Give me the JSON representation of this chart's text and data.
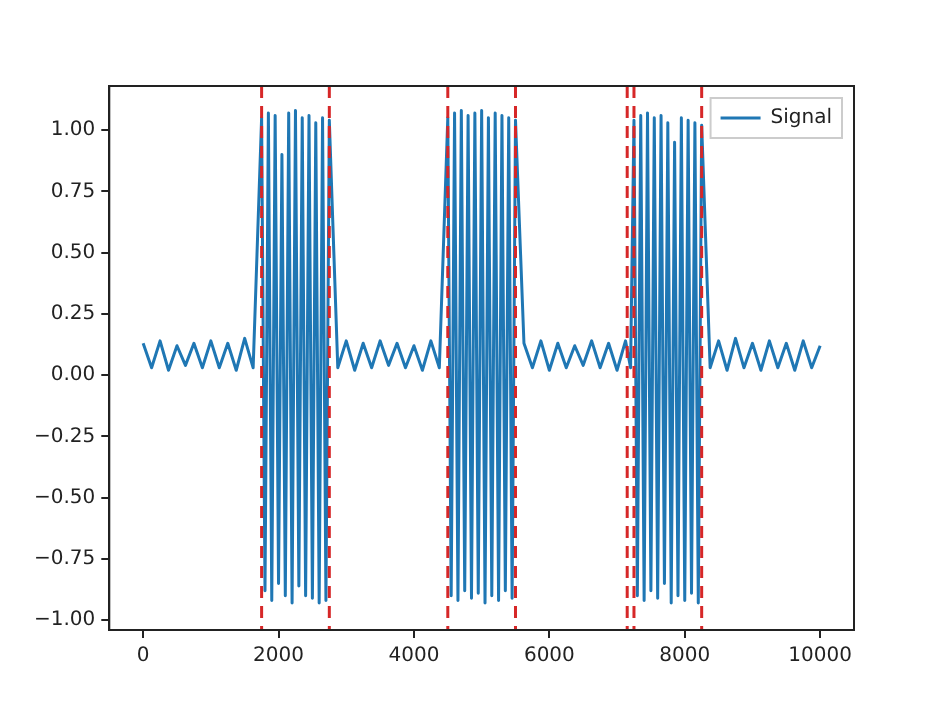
{
  "chart_data": {
    "type": "line",
    "x": [
      0,
      125,
      250,
      375,
      500,
      625,
      750,
      875,
      1000,
      1125,
      1250,
      1375,
      1500,
      1625,
      1750,
      1800,
      1850,
      1900,
      1950,
      2000,
      2050,
      2100,
      2150,
      2200,
      2250,
      2300,
      2350,
      2400,
      2450,
      2500,
      2550,
      2600,
      2650,
      2700,
      2750,
      2875,
      3000,
      3125,
      3250,
      3375,
      3500,
      3625,
      3750,
      3875,
      4000,
      4125,
      4250,
      4375,
      4500,
      4550,
      4600,
      4650,
      4700,
      4750,
      4800,
      4850,
      4900,
      4950,
      5000,
      5050,
      5100,
      5150,
      5200,
      5250,
      5300,
      5350,
      5400,
      5450,
      5500,
      5625,
      5750,
      5875,
      6000,
      6125,
      6250,
      6375,
      6500,
      6625,
      6750,
      6875,
      7000,
      7125,
      7200,
      7250,
      7300,
      7350,
      7400,
      7450,
      7500,
      7550,
      7600,
      7650,
      7700,
      7750,
      7800,
      7850,
      7900,
      7950,
      8000,
      8050,
      8100,
      8150,
      8200,
      8250,
      8375,
      8500,
      8625,
      8750,
      8875,
      9000,
      9125,
      9250,
      9375,
      9500,
      9625,
      9750,
      9875,
      10000
    ],
    "series": [
      {
        "name": "Signal",
        "color": "#1f77b4",
        "values": [
          0.13,
          0.03,
          0.14,
          0.02,
          0.12,
          0.04,
          0.13,
          0.03,
          0.14,
          0.03,
          0.13,
          0.02,
          0.15,
          0.03,
          1.05,
          -0.88,
          1.07,
          -0.92,
          1.06,
          -0.85,
          0.9,
          -0.9,
          1.07,
          -0.93,
          1.08,
          -0.86,
          1.05,
          -0.9,
          1.06,
          -0.91,
          1.03,
          -0.93,
          1.05,
          -0.92,
          1.04,
          0.03,
          0.14,
          0.02,
          0.13,
          0.03,
          0.14,
          0.04,
          0.13,
          0.03,
          0.12,
          0.02,
          0.14,
          0.03,
          1.05,
          -0.9,
          1.07,
          -0.92,
          1.08,
          -0.88,
          1.06,
          -0.91,
          1.07,
          -0.89,
          1.08,
          -0.93,
          1.05,
          -0.9,
          1.07,
          -0.92,
          1.06,
          -0.88,
          1.05,
          -0.91,
          1.04,
          0.13,
          0.03,
          0.14,
          0.02,
          0.13,
          0.03,
          0.12,
          0.04,
          0.14,
          0.03,
          0.13,
          0.02,
          0.14,
          0.03,
          1.04,
          -0.9,
          1.06,
          -0.92,
          1.07,
          -0.88,
          1.05,
          -0.91,
          1.06,
          -0.85,
          1.03,
          -0.93,
          0.95,
          -0.9,
          1.05,
          -0.92,
          1.04,
          -0.89,
          1.03,
          -0.93,
          1.02,
          0.03,
          0.14,
          0.02,
          0.15,
          0.03,
          0.13,
          0.02,
          0.14,
          0.03,
          0.13,
          0.02,
          0.14,
          0.03,
          0.12
        ]
      }
    ],
    "xlim": [
      -500,
      10500
    ],
    "xticks": [
      0,
      2000,
      4000,
      6000,
      8000,
      10000
    ],
    "ylim": [
      -1.04,
      1.18
    ],
    "yticks": [
      {
        "value": -1,
        "label": "−1.00"
      },
      {
        "value": -0.75,
        "label": "−0.75"
      },
      {
        "value": -0.5,
        "label": "−0.50"
      },
      {
        "value": -0.25,
        "label": "−0.25"
      },
      {
        "value": 0,
        "label": "0.00"
      },
      {
        "value": 0.25,
        "label": "0.25"
      },
      {
        "value": 0.5,
        "label": "0.50"
      },
      {
        "value": 0.75,
        "label": "0.75"
      },
      {
        "value": 1,
        "label": "1.00"
      }
    ],
    "ref_lines": [
      {
        "axis": "x",
        "value": 1750,
        "color": "#d62728",
        "line_style": "dashed"
      },
      {
        "axis": "x",
        "value": 2750,
        "color": "#d62728",
        "line_style": "dashed"
      },
      {
        "axis": "x",
        "value": 4500,
        "color": "#d62728",
        "line_style": "dashed"
      },
      {
        "axis": "x",
        "value": 5500,
        "color": "#d62728",
        "line_style": "dashed"
      },
      {
        "axis": "x",
        "value": 7150,
        "color": "#d62728",
        "line_style": "dashed"
      },
      {
        "axis": "x",
        "value": 7250,
        "color": "#d62728",
        "line_style": "dashed"
      },
      {
        "axis": "x",
        "value": 8250,
        "color": "#d62728",
        "line_style": "dashed"
      }
    ],
    "grid": false,
    "legend": "top right",
    "marker": "none",
    "line_style": "solid"
  }
}
